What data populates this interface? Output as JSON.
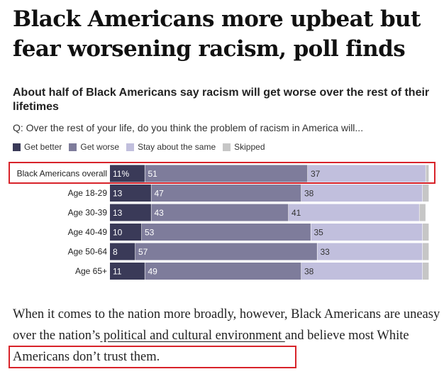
{
  "headline": "Black Americans more upbeat but fear worsening racism, poll finds",
  "colors": {
    "get_better": "#3a3a58",
    "get_worse": "#7e7c9b",
    "stay_same": "#c1bfdd",
    "skipped": "#c6c6c6",
    "highlight": "#d8232a"
  },
  "chart_data": {
    "type": "bar",
    "orientation": "horizontal-stacked",
    "title": "About half of Black Americans say racism will get worse over the rest of their lifetimes",
    "question": "Q: Over the rest of your life, do you think the problem of racism in America will...",
    "legend": [
      "Get better",
      "Get worse",
      "Stay about the same",
      "Skipped"
    ],
    "categories": [
      "Black Americans overall",
      "Age 18-29",
      "Age 30-39",
      "Age 40-49",
      "Age 50-64",
      "Age 65+"
    ],
    "series": [
      {
        "name": "Get better",
        "values": [
          11,
          13,
          13,
          10,
          8,
          11
        ],
        "labels": [
          "11%",
          "13",
          "13",
          "10",
          "8",
          "11"
        ]
      },
      {
        "name": "Get worse",
        "values": [
          51,
          47,
          43,
          53,
          57,
          49
        ],
        "labels": [
          "51",
          "47",
          "43",
          "53",
          "57",
          "49"
        ]
      },
      {
        "name": "Stay about the same",
        "values": [
          37,
          38,
          41,
          35,
          33,
          38
        ],
        "labels": [
          "37",
          "38",
          "41",
          "35",
          "33",
          "38"
        ]
      },
      {
        "name": "Skipped",
        "values": [
          1,
          2,
          2,
          2,
          2,
          2
        ],
        "labels": [
          "",
          "",
          "",
          "",
          "",
          ""
        ]
      }
    ],
    "xlim": [
      0,
      100
    ]
  },
  "body": {
    "before_link": "When it comes to the nation more broadly, however, Black Americans are uneasy over the nation’s",
    "link": " political and cultural environment ",
    "after_link": "and believe most White Americans don’t trust them."
  }
}
